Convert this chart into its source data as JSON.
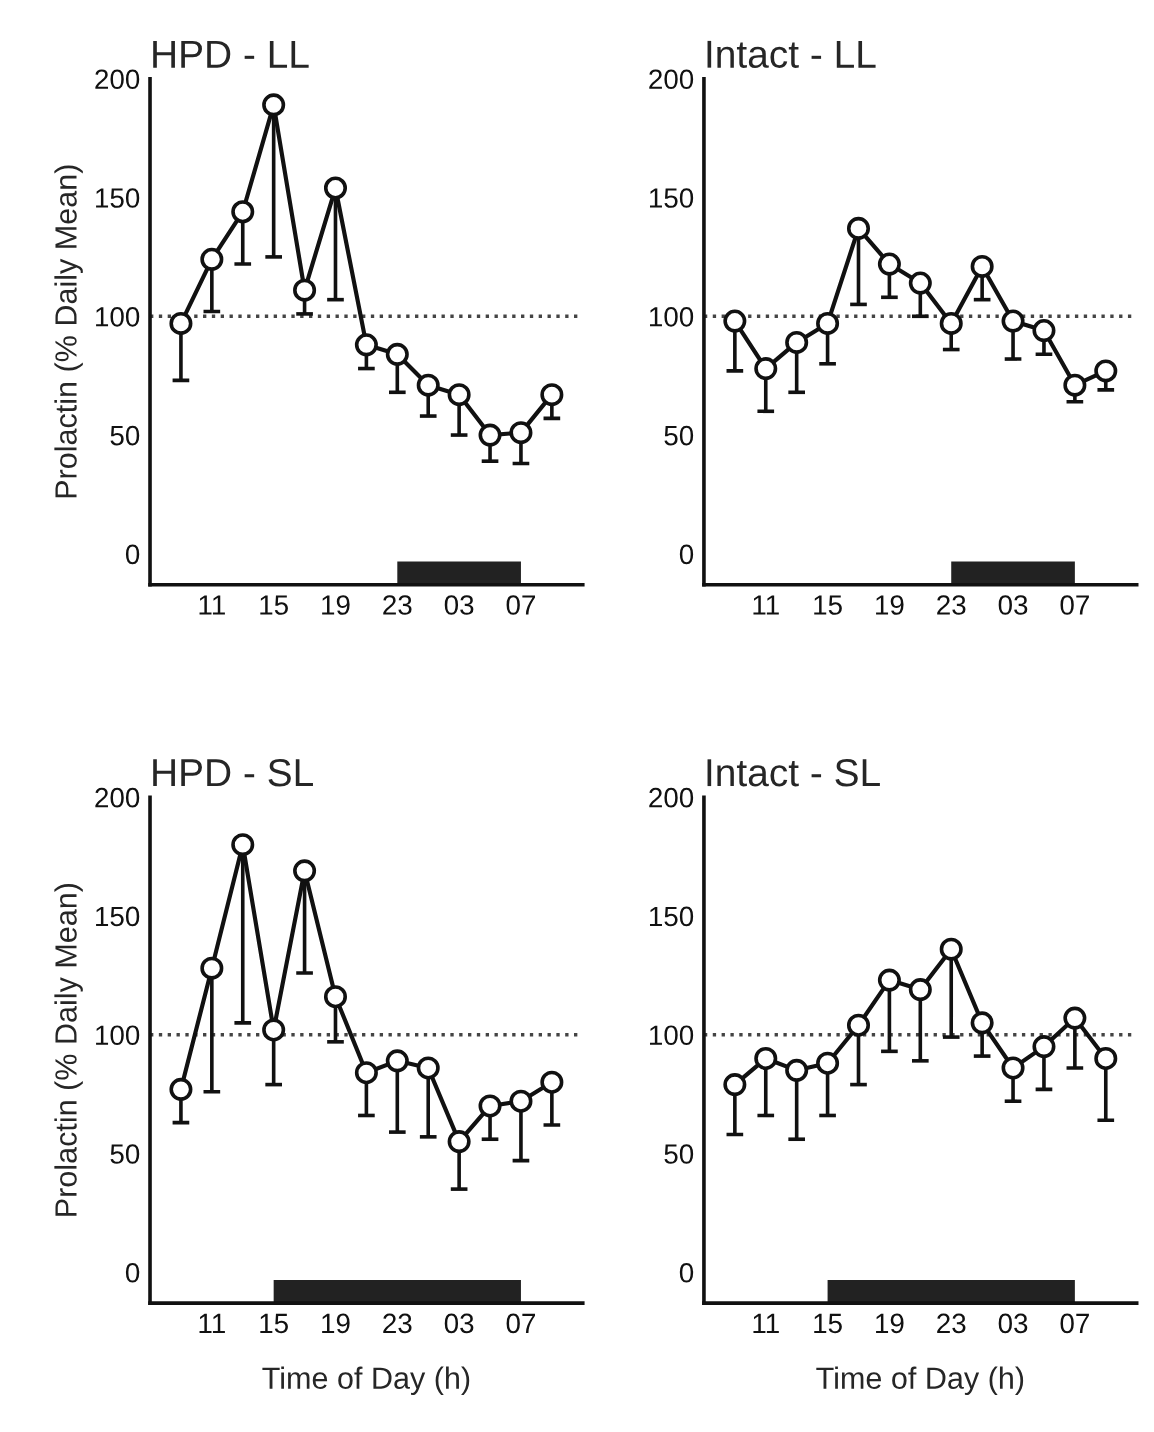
{
  "chart_data": [
    {
      "type": "line",
      "title": "HPD - LL",
      "ylabel": "Prolactin (% Daily Mean)",
      "categories": [
        null,
        "11",
        null,
        "15",
        null,
        "19",
        null,
        "23",
        null,
        "03",
        null,
        "07",
        null
      ],
      "ylim": [
        -13,
        200
      ],
      "yticks": [
        0,
        50,
        100,
        150,
        200
      ],
      "marker": "circle",
      "line_style": "solid",
      "grid": false,
      "legend": false,
      "series": [
        {
          "color": "#111111",
          "values": [
            97,
            124,
            144,
            189,
            111,
            154,
            88,
            84,
            71,
            67,
            50,
            51,
            67
          ],
          "errors": [
            [
              73,
              97
            ],
            [
              102,
              124
            ],
            [
              122,
              144
            ],
            [
              125,
              189
            ],
            [
              101,
              111
            ],
            [
              107,
              154
            ],
            [
              78,
              88
            ],
            [
              68,
              84
            ],
            [
              58,
              71
            ],
            [
              50,
              67
            ],
            [
              39,
              50
            ],
            [
              38,
              51
            ],
            [
              57,
              67
            ]
          ]
        }
      ],
      "ref_lines": [
        {
          "axis": "y",
          "value": 100,
          "line_style": "dotted",
          "color": "#444444"
        }
      ],
      "bands": [
        {
          "axis": "x",
          "from": "23",
          "to": "07",
          "color": "#222222"
        }
      ]
    },
    {
      "type": "line",
      "title": "Intact - LL",
      "categories": [
        null,
        "11",
        null,
        "15",
        null,
        "19",
        null,
        "23",
        null,
        "03",
        null,
        "07",
        null
      ],
      "ylim": [
        -13,
        200
      ],
      "yticks": [
        0,
        50,
        100,
        150,
        200
      ],
      "marker": "circle",
      "line_style": "solid",
      "grid": false,
      "legend": false,
      "series": [
        {
          "color": "#111111",
          "values": [
            98,
            78,
            89,
            97,
            137,
            122,
            114,
            97,
            121,
            98,
            94,
            71,
            77
          ],
          "errors": [
            [
              77,
              98
            ],
            [
              60,
              78
            ],
            [
              68,
              89
            ],
            [
              80,
              97
            ],
            [
              105,
              137
            ],
            [
              108,
              122
            ],
            [
              100,
              114
            ],
            [
              86,
              97
            ],
            [
              107,
              121
            ],
            [
              82,
              98
            ],
            [
              84,
              94
            ],
            [
              64,
              71
            ],
            [
              69,
              77
            ]
          ]
        }
      ],
      "ref_lines": [
        {
          "axis": "y",
          "value": 100,
          "line_style": "dotted",
          "color": "#444444"
        }
      ],
      "bands": [
        {
          "axis": "x",
          "from": "23",
          "to": "07",
          "color": "#222222"
        }
      ]
    },
    {
      "type": "line",
      "title": "HPD - SL",
      "ylabel": "Prolactin (% Daily Mean)",
      "xlabel": "Time of Day (h)",
      "categories": [
        null,
        "11",
        null,
        "15",
        null,
        "19",
        null,
        "23",
        null,
        "03",
        null,
        "07",
        null
      ],
      "ylim": [
        -13,
        200
      ],
      "yticks": [
        0,
        50,
        100,
        150,
        200
      ],
      "marker": "circle",
      "line_style": "solid",
      "grid": false,
      "legend": false,
      "series": [
        {
          "color": "#111111",
          "values": [
            77,
            128,
            180,
            102,
            169,
            116,
            84,
            89,
            86,
            55,
            70,
            72,
            80
          ],
          "errors": [
            [
              63,
              77
            ],
            [
              76,
              128
            ],
            [
              105,
              180
            ],
            [
              79,
              102
            ],
            [
              126,
              169
            ],
            [
              97,
              116
            ],
            [
              66,
              84
            ],
            [
              59,
              89
            ],
            [
              57,
              86
            ],
            [
              35,
              55
            ],
            [
              56,
              70
            ],
            [
              47,
              72
            ],
            [
              62,
              80
            ]
          ]
        }
      ],
      "ref_lines": [
        {
          "axis": "y",
          "value": 100,
          "line_style": "dotted",
          "color": "#444444"
        }
      ],
      "bands": [
        {
          "axis": "x",
          "from": "15",
          "to": "07",
          "color": "#222222"
        }
      ]
    },
    {
      "type": "line",
      "title": "Intact - SL",
      "xlabel": "Time of Day (h)",
      "categories": [
        null,
        "11",
        null,
        "15",
        null,
        "19",
        null,
        "23",
        null,
        "03",
        null,
        "07",
        null
      ],
      "ylim": [
        -13,
        200
      ],
      "yticks": [
        0,
        50,
        100,
        150,
        200
      ],
      "marker": "circle",
      "line_style": "solid",
      "grid": false,
      "legend": false,
      "series": [
        {
          "color": "#111111",
          "values": [
            79,
            90,
            85,
            88,
            104,
            123,
            119,
            136,
            105,
            86,
            95,
            107,
            90
          ],
          "errors": [
            [
              58,
              79
            ],
            [
              66,
              90
            ],
            [
              56,
              85
            ],
            [
              66,
              88
            ],
            [
              79,
              104
            ],
            [
              93,
              123
            ],
            [
              89,
              119
            ],
            [
              99,
              136
            ],
            [
              91,
              105
            ],
            [
              72,
              86
            ],
            [
              77,
              95
            ],
            [
              86,
              107
            ],
            [
              64,
              90
            ]
          ]
        }
      ],
      "ref_lines": [
        {
          "axis": "y",
          "value": 100,
          "line_style": "dotted",
          "color": "#444444"
        }
      ],
      "bands": [
        {
          "axis": "x",
          "from": "15",
          "to": "07",
          "color": "#222222"
        }
      ]
    }
  ]
}
